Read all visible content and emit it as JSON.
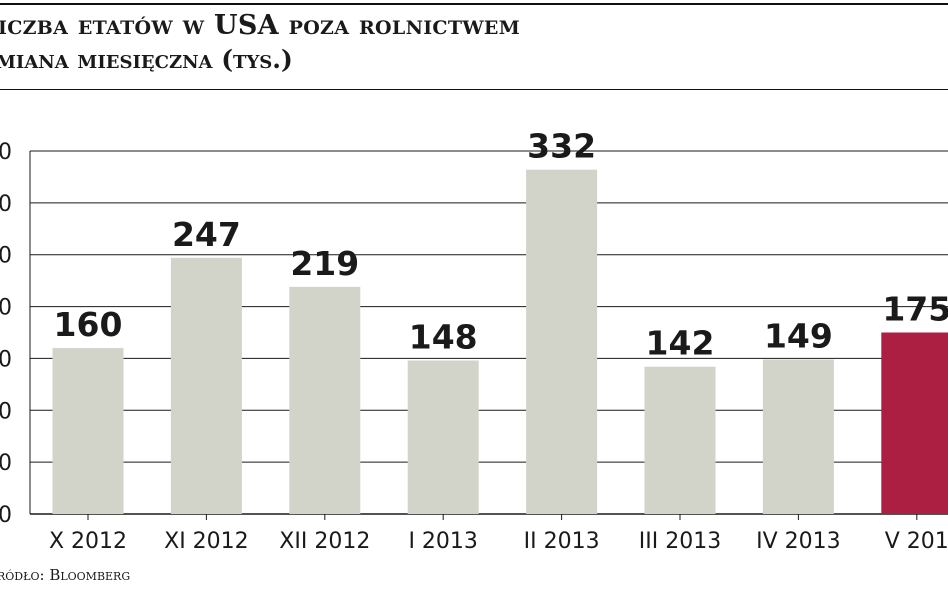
{
  "chart_data": {
    "type": "bar",
    "title": "iczba etatów w USA poza rolnictwem",
    "subtitle": "miana miesięczna (tys.)",
    "source": "ródło: Bloomberg",
    "categories": [
      "X 2012",
      "XI 2012",
      "XII 2012",
      "I 2013",
      "II 2013",
      "III 2013",
      "IV 2013",
      "V 201"
    ],
    "values": [
      160,
      247,
      219,
      148,
      332,
      142,
      149,
      175
    ],
    "data_labels": [
      "160",
      "247",
      "219",
      "148",
      "332",
      "142",
      "149",
      "175"
    ],
    "y_tick_labels": [
      "0",
      "0",
      "0",
      "0",
      "0",
      "0",
      "0",
      "0"
    ],
    "ylim": [
      0,
      350
    ],
    "y_tick_step": 50,
    "grid": true,
    "colors": {
      "bar": "#d2d3c9",
      "highlight_bar": "#ac1f43",
      "grid": "#1a1a1a",
      "text": "#1a1a1a"
    },
    "highlight_index": 7
  }
}
